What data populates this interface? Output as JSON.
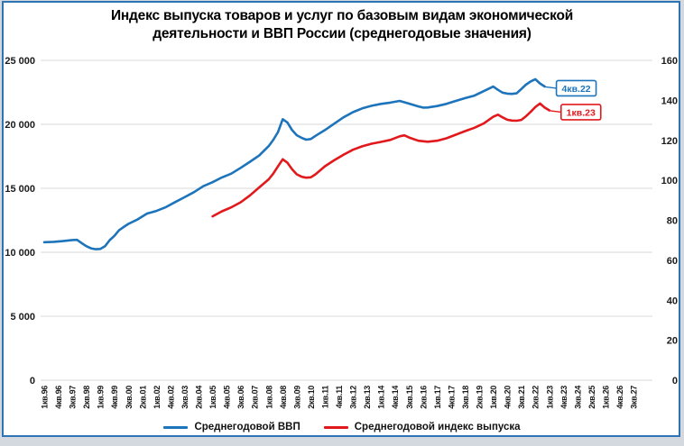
{
  "title_lines": [
    "Индекс выпуска товаров и услуг по базовым видам экономической",
    "деятельности и ВВП России (среднегодовые значения)"
  ],
  "legend": {
    "gdp": {
      "label": "Среднегодовой ВВП",
      "color": "#1e74bb"
    },
    "output": {
      "label": "Среднегодовой индекс выпуска",
      "color": "#e2191c"
    }
  },
  "annotations": {
    "gdp_end": {
      "label": "4кв.22",
      "color": "#1e74bb"
    },
    "output_end": {
      "label": "1кв.23",
      "color": "#e2191c"
    }
  },
  "colors": {
    "frame_border": "#2e74b5",
    "page_bg": "#d3d9de",
    "grid": "#d9d9d9",
    "text": "#1a1a1a"
  },
  "chart_data": {
    "type": "line",
    "title": "Индекс выпуска товаров и услуг по базовым видам экономической деятельности и ВВП России (среднегодовые значения)",
    "grid": "horizontal",
    "legend_position": "bottom",
    "x_unit": "quarters_since_1996Q1",
    "x_tick_step_quarters": 3,
    "x_tick_labels": [
      "1кв.96",
      "4кв.96",
      "3кв.97",
      "2кв.98",
      "1кв.99",
      "4кв.99",
      "3кв.00",
      "2кв.01",
      "1кв.02",
      "4кв.02",
      "3кв.03",
      "2кв.04",
      "1кв.05",
      "4кв.05",
      "3кв.06",
      "2кв.07",
      "1кв.08",
      "4кв.08",
      "3кв.09",
      "2кв.10",
      "1кв.11",
      "4кв.11",
      "3кв.12",
      "2кв.13",
      "1кв.14",
      "4кв.14",
      "3кв.15",
      "2кв.16",
      "1кв.17",
      "4кв.17",
      "3кв.18",
      "2кв.19",
      "1кв.20",
      "4кв.20",
      "3кв.21",
      "2кв.22",
      "1кв.23",
      "4кв.23",
      "3кв.24",
      "2кв.25",
      "1кв.26",
      "4кв.26",
      "3кв.27"
    ],
    "y_left": {
      "tick_labels": [
        "0",
        "5 000",
        "10 000",
        "15 000",
        "20 000",
        "25 000"
      ],
      "tick_values": [
        0,
        5000,
        10000,
        15000,
        20000,
        25000
      ],
      "range": [
        0,
        25000
      ]
    },
    "y_right": {
      "tick_labels": [
        "0",
        "20",
        "40",
        "60",
        "80",
        "100",
        "120",
        "140",
        "160"
      ],
      "tick_values": [
        0,
        20,
        40,
        60,
        80,
        100,
        120,
        140,
        160
      ],
      "range": [
        0,
        160
      ]
    },
    "series": [
      {
        "name": "Среднегодовой ВВП",
        "axis": "left",
        "color": "#1e74bb",
        "start_label": "1кв.96",
        "end_label": "4кв.22",
        "points": [
          [
            0,
            10790
          ],
          [
            2,
            10815
          ],
          [
            4,
            10870
          ],
          [
            6,
            10960
          ],
          [
            7,
            10975
          ],
          [
            8,
            10720
          ],
          [
            9,
            10480
          ],
          [
            10,
            10310
          ],
          [
            11,
            10240
          ],
          [
            12,
            10260
          ],
          [
            13,
            10480
          ],
          [
            14,
            10950
          ],
          [
            15,
            11280
          ],
          [
            16,
            11720
          ],
          [
            17,
            11980
          ],
          [
            18,
            12220
          ],
          [
            20,
            12580
          ],
          [
            22,
            13030
          ],
          [
            24,
            13230
          ],
          [
            26,
            13530
          ],
          [
            28,
            13920
          ],
          [
            30,
            14300
          ],
          [
            32,
            14700
          ],
          [
            34,
            15160
          ],
          [
            36,
            15480
          ],
          [
            38,
            15850
          ],
          [
            40,
            16150
          ],
          [
            42,
            16600
          ],
          [
            44,
            17080
          ],
          [
            46,
            17580
          ],
          [
            48,
            18300
          ],
          [
            49,
            18800
          ],
          [
            50,
            19400
          ],
          [
            51,
            20400
          ],
          [
            52,
            20150
          ],
          [
            53,
            19550
          ],
          [
            54,
            19150
          ],
          [
            55,
            18950
          ],
          [
            56,
            18800
          ],
          [
            57,
            18850
          ],
          [
            58,
            19100
          ],
          [
            60,
            19550
          ],
          [
            62,
            20050
          ],
          [
            64,
            20550
          ],
          [
            66,
            20950
          ],
          [
            68,
            21250
          ],
          [
            70,
            21450
          ],
          [
            72,
            21600
          ],
          [
            74,
            21700
          ],
          [
            76,
            21830
          ],
          [
            78,
            21620
          ],
          [
            80,
            21400
          ],
          [
            81,
            21310
          ],
          [
            82,
            21320
          ],
          [
            84,
            21430
          ],
          [
            86,
            21600
          ],
          [
            88,
            21830
          ],
          [
            90,
            22050
          ],
          [
            92,
            22250
          ],
          [
            94,
            22600
          ],
          [
            96,
            22950
          ],
          [
            97,
            22700
          ],
          [
            98,
            22480
          ],
          [
            99,
            22400
          ],
          [
            100,
            22380
          ],
          [
            101,
            22420
          ],
          [
            102,
            22760
          ],
          [
            103,
            23100
          ],
          [
            104,
            23350
          ],
          [
            105,
            23530
          ],
          [
            106,
            23200
          ],
          [
            107,
            22960
          ]
        ]
      },
      {
        "name": "Среднегодовой индекс выпуска",
        "axis": "right",
        "color": "#e2191c",
        "start_label": "1кв.05",
        "end_label": "1кв.23",
        "points": [
          [
            36,
            82
          ],
          [
            38,
            84.5
          ],
          [
            40,
            86.5
          ],
          [
            42,
            89
          ],
          [
            44,
            92.5
          ],
          [
            46,
            96.5
          ],
          [
            48,
            100.5
          ],
          [
            49,
            103.5
          ],
          [
            50,
            107
          ],
          [
            51,
            110.5
          ],
          [
            52,
            108.8
          ],
          [
            53,
            105.5
          ],
          [
            54,
            103
          ],
          [
            55,
            101.8
          ],
          [
            56,
            101.3
          ],
          [
            57,
            101.5
          ],
          [
            58,
            103
          ],
          [
            60,
            107
          ],
          [
            62,
            110
          ],
          [
            64,
            112.8
          ],
          [
            66,
            115.3
          ],
          [
            68,
            117
          ],
          [
            70,
            118.3
          ],
          [
            72,
            119.2
          ],
          [
            74,
            120.2
          ],
          [
            76,
            122
          ],
          [
            77,
            122.5
          ],
          [
            78,
            121.4
          ],
          [
            80,
            119.8
          ],
          [
            82,
            119.3
          ],
          [
            84,
            119.8
          ],
          [
            86,
            121
          ],
          [
            88,
            122.8
          ],
          [
            90,
            124.6
          ],
          [
            92,
            126.3
          ],
          [
            94,
            128.5
          ],
          [
            96,
            131.8
          ],
          [
            97,
            132.8
          ],
          [
            98,
            131.5
          ],
          [
            99,
            130.3
          ],
          [
            100,
            129.9
          ],
          [
            101,
            129.8
          ],
          [
            102,
            130.2
          ],
          [
            103,
            132
          ],
          [
            104,
            134.2
          ],
          [
            105,
            136.6
          ],
          [
            106,
            138.4
          ],
          [
            107,
            136.4
          ],
          [
            108,
            135
          ]
        ]
      }
    ]
  }
}
